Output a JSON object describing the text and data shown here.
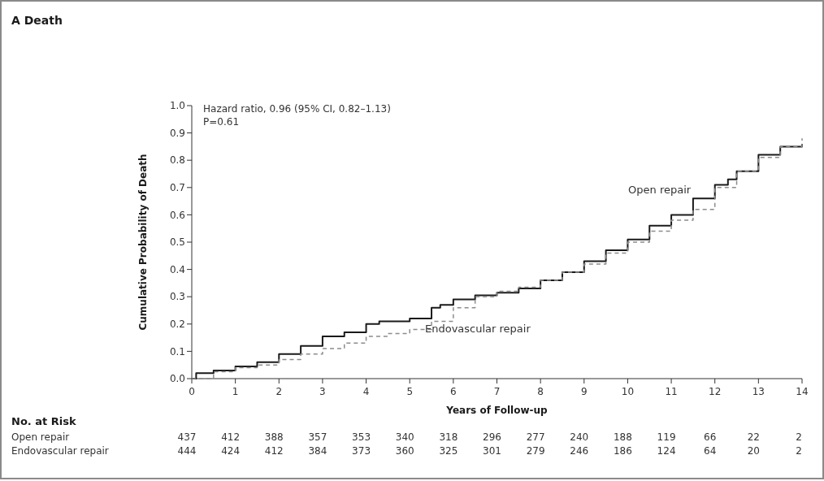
{
  "chart_data": {
    "type": "step",
    "title": "A  Death",
    "xlabel": "Years of Follow-up",
    "ylabel": "Cumulative Probability of Death",
    "xlim": [
      0,
      14
    ],
    "xticks": [
      0,
      1,
      2,
      3,
      4,
      5,
      6,
      7,
      8,
      9,
      10,
      11,
      12,
      13,
      14
    ],
    "ylim": [
      0,
      1
    ],
    "yticks": [
      {
        "value": 0,
        "label": "0.0"
      },
      0.1,
      0.2,
      0.3,
      0.4,
      0.5,
      0.6,
      0.7,
      0.8,
      0.9,
      {
        "value": 1,
        "label": "1.0"
      }
    ],
    "series": [
      {
        "name": "Open repair",
        "color": "#1a1a1a",
        "line_style": "solid",
        "x": [
          0,
          0.1,
          0.5,
          1,
          1.5,
          2,
          2.5,
          3,
          3.5,
          4,
          4.3,
          5,
          5.5,
          5.7,
          6,
          6.5,
          7,
          7.5,
          8,
          8.5,
          9,
          9.5,
          10,
          10.5,
          11,
          11.5,
          12,
          12.3,
          12.5,
          13,
          13.5,
          14
        ],
        "values": [
          0,
          0.02,
          0.03,
          0.045,
          0.06,
          0.09,
          0.12,
          0.155,
          0.17,
          0.2,
          0.21,
          0.22,
          0.26,
          0.27,
          0.29,
          0.305,
          0.315,
          0.33,
          0.36,
          0.39,
          0.43,
          0.47,
          0.51,
          0.56,
          0.6,
          0.66,
          0.71,
          0.73,
          0.76,
          0.82,
          0.85,
          0.86
        ]
      },
      {
        "name": "Endovascular repair",
        "color": "#8c8c8c",
        "line_style": "dashed",
        "x": [
          0,
          0.5,
          1,
          1.5,
          2,
          2.5,
          3,
          3.5,
          4,
          4.5,
          5,
          5.5,
          6,
          6.5,
          7,
          7.5,
          8,
          8.5,
          9,
          9.5,
          10,
          10.5,
          11,
          11.5,
          12,
          12.5,
          13,
          13.5,
          14
        ],
        "values": [
          0,
          0.025,
          0.04,
          0.05,
          0.07,
          0.09,
          0.11,
          0.13,
          0.155,
          0.165,
          0.18,
          0.21,
          0.26,
          0.3,
          0.32,
          0.335,
          0.36,
          0.39,
          0.42,
          0.46,
          0.5,
          0.54,
          0.58,
          0.62,
          0.7,
          0.76,
          0.81,
          0.85,
          0.88
        ]
      }
    ],
    "annotations": [
      "Hazard ratio, 0.96 (95% CI, 0.82–1.13)",
      "P=0.61",
      "No. at Risk",
      "Open repair 437 412 388 357 353 340 318 296 277 240 188 119 66 22 2",
      "Endovascular repair 444 424 412 384 373 360 325 301 279 246 186 124 64 20 2"
    ],
    "grid": false,
    "legend": false
  }
}
